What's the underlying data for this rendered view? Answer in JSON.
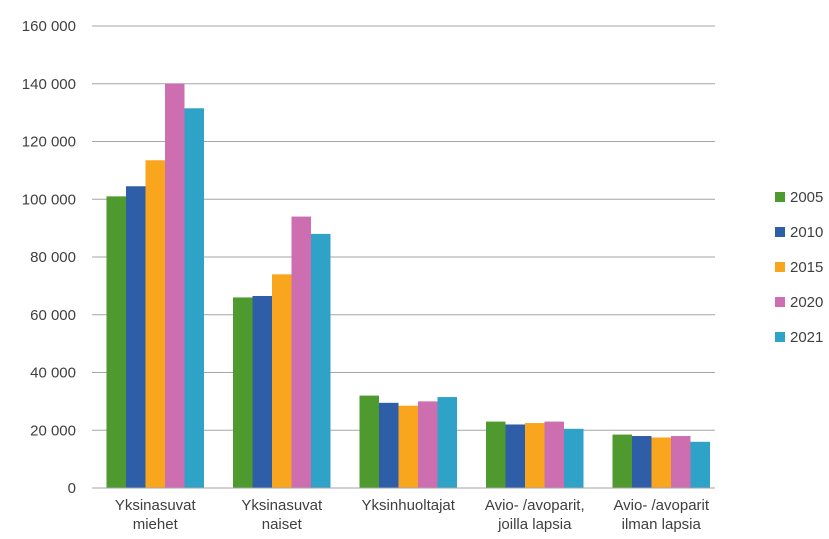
{
  "chart_data": {
    "type": "bar",
    "title": "",
    "xlabel": "",
    "ylabel": "",
    "ylim": [
      0,
      160000
    ],
    "yticks": [
      0,
      20000,
      40000,
      60000,
      80000,
      100000,
      120000,
      140000,
      160000
    ],
    "ytick_labels": [
      "0",
      "20 000",
      "40 000",
      "60 000",
      "80 000",
      "100 000",
      "120 000",
      "140 000",
      "160 000"
    ],
    "grid": true,
    "legend_position": "right",
    "categories": [
      [
        "Yksinasuvat",
        "miehet"
      ],
      [
        "Yksinasuvat",
        "naiset"
      ],
      [
        "Yksinhuoltajat"
      ],
      [
        "Avio- /avoparit,",
        "joilla lapsia"
      ],
      [
        "Avio- /avoparit",
        "ilman lapsia"
      ]
    ],
    "series": [
      {
        "name": "2005",
        "color": "#4e9a2e",
        "values": [
          101000,
          66000,
          32000,
          23000,
          18500
        ]
      },
      {
        "name": "2010",
        "color": "#2f5ea8",
        "values": [
          104500,
          66500,
          29500,
          22000,
          18000
        ]
      },
      {
        "name": "2015",
        "color": "#f9a51d",
        "values": [
          113500,
          74000,
          28500,
          22500,
          17500
        ]
      },
      {
        "name": "2020",
        "color": "#cc6eb0",
        "values": [
          140000,
          94000,
          30000,
          23000,
          18000
        ]
      },
      {
        "name": "2021",
        "color": "#2ea3c7",
        "values": [
          131500,
          88000,
          31500,
          20500,
          16000
        ]
      }
    ]
  }
}
